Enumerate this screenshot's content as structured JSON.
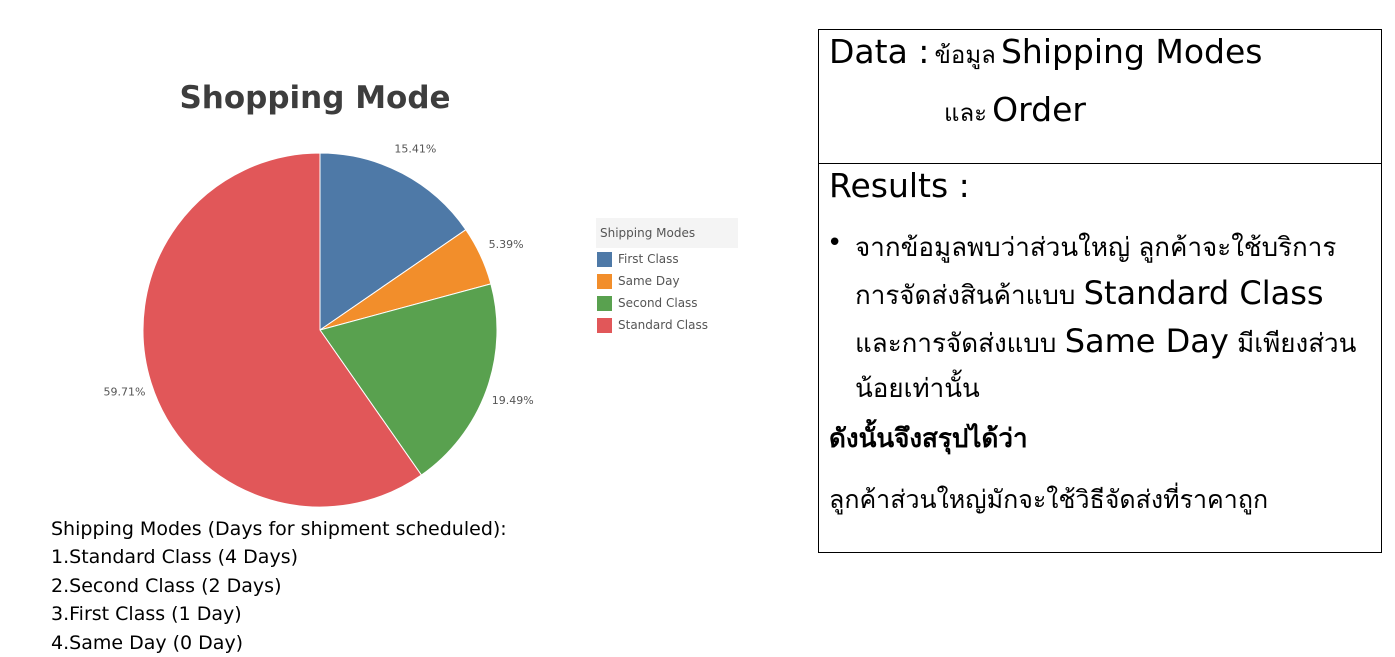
{
  "chart_data": {
    "type": "pie",
    "title": "Shopping Mode",
    "legend_title": "Shipping Modes",
    "legend_position": "right",
    "categories": [
      "First Class",
      "Same Day",
      "Second Class",
      "Standard Class"
    ],
    "values": [
      15.41,
      5.39,
      19.49,
      59.71
    ],
    "labels": [
      "15.41%",
      "5.39%",
      "19.49%",
      "59.71%"
    ],
    "colors": [
      "#4e79a7",
      "#f28e2b",
      "#59a14f",
      "#e15759"
    ]
  },
  "notes": {
    "heading": "Shipping Modes (Days for shipment scheduled):",
    "items": [
      "1.Standard Class (4 Days)",
      "2.Second Class (2 Days)",
      "3.First Class (1 Day)",
      "4.Same Day (0 Day)"
    ]
  },
  "panel": {
    "data_prefix": "Data :",
    "data_th1": "ข้อมูล",
    "data_en1": "Shipping Modes",
    "data_th2": "และ",
    "data_en2": "Order",
    "results_heading": "Results :",
    "bullet": "•",
    "finding_p1": "จากข้อมูลพบว่าส่วนใหญ่ ลูกค้าจะใช้บริการการจัดส่งสินค้าแบบ",
    "finding_en1": "Standard Class",
    "finding_p2": "และการจัดส่งแบบ",
    "finding_en2": "Same Day",
    "finding_p3": "มีเพียงส่วนน้อยเท่านั้น",
    "conclusion_heading": "ดังนั้นจึงสรุปได้ว่า",
    "conclusion_text": "ลูกค้าส่วนใหญ่มักจะใช้วิธีจัดส่งที่ราคาถูก"
  }
}
